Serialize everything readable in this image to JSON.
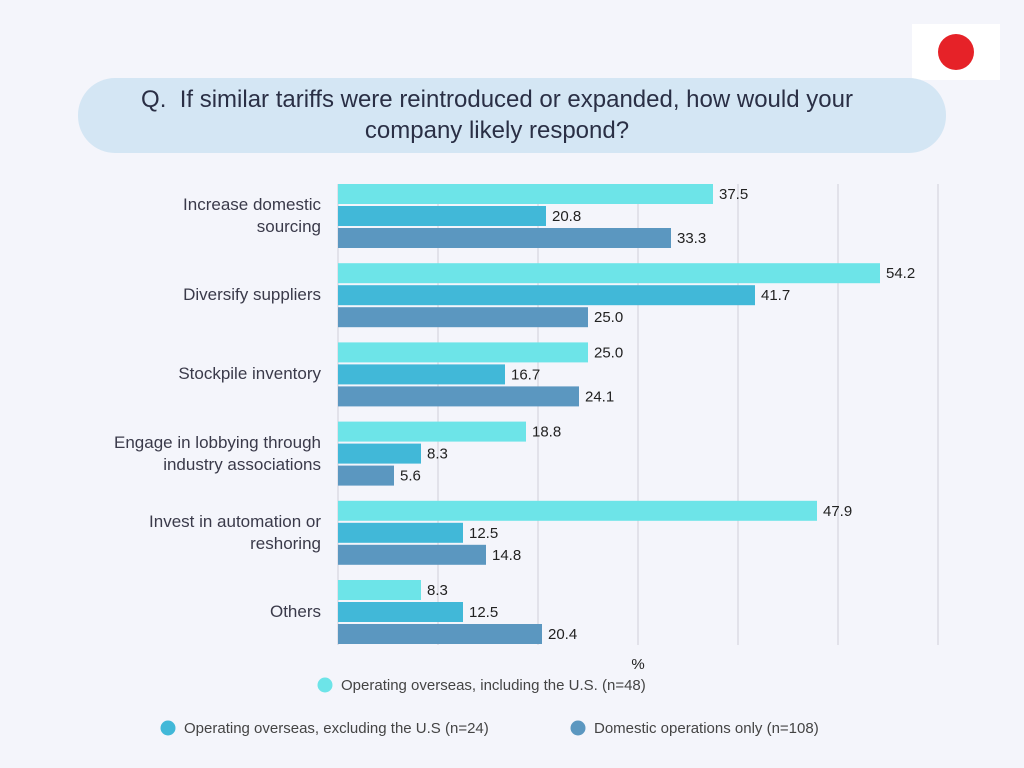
{
  "chart_data": {
    "type": "bar",
    "orientation": "horizontal",
    "title": "Q.  If similar tariffs were reintroduced or expanded, how would your company likely respond?",
    "x_label": "%",
    "categories": [
      "Increase domestic sourcing",
      "Diversify suppliers",
      "Stockpile inventory",
      "Engage in lobbying through industry associations",
      "Invest in automation or reshoring",
      "Others"
    ],
    "series": [
      {
        "name": "Operating overseas, including the U.S. (n=48)",
        "color": "#6de4e8",
        "values": [
          37.5,
          54.2,
          25,
          18.8,
          47.9,
          8.3
        ],
        "value_labels": [
          "37.5",
          "54.2",
          "25.0",
          "18.8",
          "47.9",
          "8.3"
        ]
      },
      {
        "name": "Operating overseas, excluding the U.S (n=24)",
        "color": "#41b8d8",
        "values": [
          20.8,
          41.7,
          16.7,
          8.3,
          12.5,
          12.5
        ],
        "value_labels": [
          "20.8",
          "41.7",
          "16.7",
          "8.3",
          "12.5",
          "12.5"
        ]
      },
      {
        "name": "Domestic operations only (n=108)",
        "color": "#5b97c0",
        "values": [
          33.3,
          25,
          24.1,
          5.6,
          14.8,
          20.4
        ],
        "value_labels": [
          "33.3",
          "25.0",
          "24.1",
          "5.6",
          "14.8",
          "20.4"
        ]
      }
    ],
    "xlim": [
      0,
      60
    ],
    "xticks": [
      0,
      10,
      20,
      30,
      40,
      50,
      60
    ],
    "grid": true
  }
}
